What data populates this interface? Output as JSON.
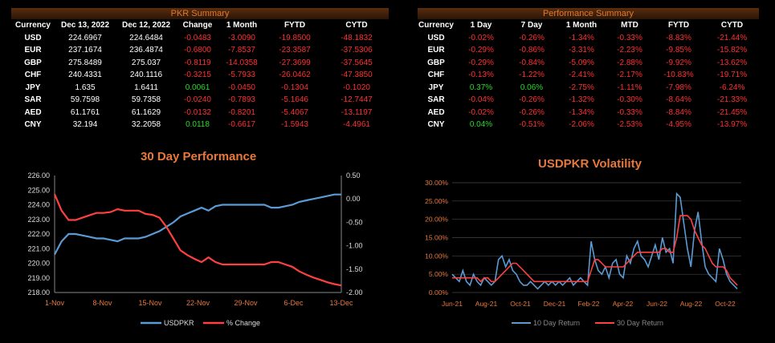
{
  "pkr_summary": {
    "banner": "PKR Summary",
    "headers": [
      "Currency",
      "Dec 13, 2022",
      "Dec 12, 2022",
      "Change",
      "1 Month",
      "FYTD",
      "CYTD"
    ],
    "rows": [
      [
        "USD",
        "224.6967",
        "224.6484",
        "-0.0483",
        "-3.0090",
        "-19.8500",
        "-48.1832"
      ],
      [
        "EUR",
        "237.1674",
        "236.4874",
        "-0.6800",
        "-7.8537",
        "-23.3587",
        "-37.5306"
      ],
      [
        "GBP",
        "275.8489",
        "275.037",
        "-0.8119",
        "-14.0358",
        "-27.3699",
        "-37.5645"
      ],
      [
        "CHF",
        "240.4331",
        "240.1116",
        "-0.3215",
        "-5.7933",
        "-26.0462",
        "-47.3850"
      ],
      [
        "JPY",
        "1.635",
        "1.6411",
        "0.0061",
        "-0.0450",
        "-0.1304",
        "-0.1020"
      ],
      [
        "SAR",
        "59.7598",
        "59.7358",
        "-0.0240",
        "-0.7893",
        "-5.1646",
        "-12.7447"
      ],
      [
        "AED",
        "61.1761",
        "61.1629",
        "-0.0132",
        "-0.8201",
        "-5.4067",
        "-13.1197"
      ],
      [
        "CNY",
        "32.194",
        "32.2058",
        "0.0118",
        "-0.6617",
        "-1.5943",
        "-4.4961"
      ]
    ]
  },
  "performance_summary": {
    "banner": "Performance Summary",
    "headers": [
      "Currency",
      "1 Day",
      "7 Day",
      "1 Month",
      "MTD",
      "FYTD",
      "CYTD"
    ],
    "rows": [
      [
        "USD",
        "-0.02%",
        "-0.26%",
        "-1.34%",
        "-0.33%",
        "-8.83%",
        "-21.44%"
      ],
      [
        "EUR",
        "-0.29%",
        "-0.86%",
        "-3.31%",
        "-2.23%",
        "-9.85%",
        "-15.82%"
      ],
      [
        "GBP",
        "-0.29%",
        "-0.84%",
        "-5.09%",
        "-2.88%",
        "-9.92%",
        "-13.62%"
      ],
      [
        "CHF",
        "-0.13%",
        "-1.22%",
        "-2.41%",
        "-2.17%",
        "-10.83%",
        "-19.71%"
      ],
      [
        "JPY",
        "0.37%",
        "0.06%",
        "-2.75%",
        "-1.11%",
        "-7.98%",
        "-6.24%"
      ],
      [
        "SAR",
        "-0.04%",
        "-0.26%",
        "-1.32%",
        "-0.30%",
        "-8.64%",
        "-21.33%"
      ],
      [
        "AED",
        "-0.02%",
        "-0.26%",
        "-1.34%",
        "-0.33%",
        "-8.84%",
        "-21.45%"
      ],
      [
        "CNY",
        "0.04%",
        "-0.51%",
        "-2.06%",
        "-2.53%",
        "-4.95%",
        "-13.97%"
      ]
    ]
  },
  "colors": {
    "positive": "#22dd22",
    "negative": "#ff3030",
    "title": "#e8793a",
    "blue": "#5b9bd5",
    "red": "#ff4040"
  },
  "chart_data": [
    {
      "type": "line",
      "title": "30 Day Performance",
      "x_ticks": [
        "1-Nov",
        "8-Nov",
        "15-Nov",
        "22-Nov",
        "29-Nov",
        "6-Dec",
        "13-Dec"
      ],
      "y_left_ticks": [
        "226.00",
        "225.00",
        "224.00",
        "223.00",
        "222.00",
        "221.00",
        "220.00",
        "219.00",
        "218.00"
      ],
      "y_right_ticks": [
        "0.50",
        "0.00",
        "-0.50",
        "-1.00",
        "-1.50",
        "-2.00"
      ],
      "ylim_left": [
        218,
        226
      ],
      "ylim_right": [
        -2.0,
        0.5
      ],
      "legend_position": "bottom",
      "series": [
        {
          "name": "USDPKR",
          "axis": "left",
          "color": "#5b9bd5",
          "values": [
            220.6,
            221.5,
            222.0,
            222.0,
            221.9,
            221.8,
            221.7,
            221.7,
            221.6,
            221.5,
            221.7,
            221.7,
            221.7,
            221.8,
            222.0,
            222.2,
            222.5,
            222.8,
            223.2,
            223.4,
            223.6,
            223.8,
            223.6,
            223.9,
            224.0,
            224.0,
            224.0,
            224.0,
            224.0,
            224.0,
            224.0,
            223.8,
            223.8,
            223.9,
            224.0,
            224.2,
            224.3,
            224.4,
            224.5,
            224.6,
            224.7,
            224.7
          ]
        },
        {
          "name": "% Change",
          "axis": "right",
          "color": "#ff4040",
          "values": [
            0.1,
            -0.25,
            -0.45,
            -0.45,
            -0.4,
            -0.35,
            -0.3,
            -0.3,
            -0.28,
            -0.22,
            -0.25,
            -0.25,
            -0.25,
            -0.32,
            -0.34,
            -0.4,
            -0.6,
            -0.85,
            -1.1,
            -1.2,
            -1.28,
            -1.35,
            -1.25,
            -1.35,
            -1.4,
            -1.4,
            -1.4,
            -1.4,
            -1.4,
            -1.4,
            -1.4,
            -1.35,
            -1.35,
            -1.4,
            -1.45,
            -1.55,
            -1.62,
            -1.68,
            -1.73,
            -1.78,
            -1.82,
            -1.85
          ]
        }
      ]
    },
    {
      "type": "line",
      "title": "USDPKR Volatility",
      "x_ticks": [
        "Jun-21",
        "Aug-21",
        "Oct-21",
        "Dec-21",
        "Feb-22",
        "Apr-22",
        "Jun-22",
        "Aug-22",
        "Oct-22"
      ],
      "y_ticks": [
        "30.00%",
        "25.00%",
        "20.00%",
        "15.00%",
        "10.00%",
        "5.00%",
        "0.00%"
      ],
      "ylim": [
        0,
        30
      ],
      "legend_position": "bottom",
      "series": [
        {
          "name": "10 Day Return",
          "color": "#5b9bd5",
          "values": [
            5,
            4,
            3,
            6,
            3,
            2,
            5,
            3,
            2,
            4,
            3,
            2,
            3,
            9,
            10,
            7,
            9,
            6,
            5,
            3,
            2,
            2,
            3,
            2,
            1,
            2,
            3,
            2,
            3,
            2,
            3,
            2,
            3,
            4,
            2,
            3,
            4,
            3,
            2,
            14,
            9,
            6,
            5,
            7,
            4,
            8,
            9,
            5,
            4,
            10,
            8,
            12,
            14,
            10,
            9,
            7,
            10,
            13,
            9,
            15,
            11,
            12,
            8,
            27,
            26,
            19,
            12,
            7,
            17,
            22,
            14,
            7,
            5,
            4,
            3,
            12,
            9,
            5,
            3,
            2,
            1
          ]
        },
        {
          "name": "30 Day Return",
          "color": "#ff4040",
          "values": [
            4,
            4,
            4,
            4,
            4,
            4,
            4,
            4,
            3,
            4,
            4,
            3,
            3,
            4,
            5,
            6,
            7,
            8,
            8,
            7,
            6,
            5,
            4,
            3,
            3,
            3,
            3,
            3,
            3,
            3,
            3,
            3,
            3,
            3,
            3,
            3,
            3,
            3,
            3,
            6,
            9,
            9,
            8,
            7,
            7,
            7,
            7,
            7,
            7,
            8,
            9,
            10,
            11,
            11,
            11,
            11,
            11,
            11,
            11,
            12,
            12,
            11,
            11,
            15,
            21,
            21,
            21,
            20,
            17,
            15,
            13,
            12,
            10,
            8,
            7,
            7,
            7,
            6,
            4,
            3,
            2
          ]
        }
      ]
    }
  ]
}
